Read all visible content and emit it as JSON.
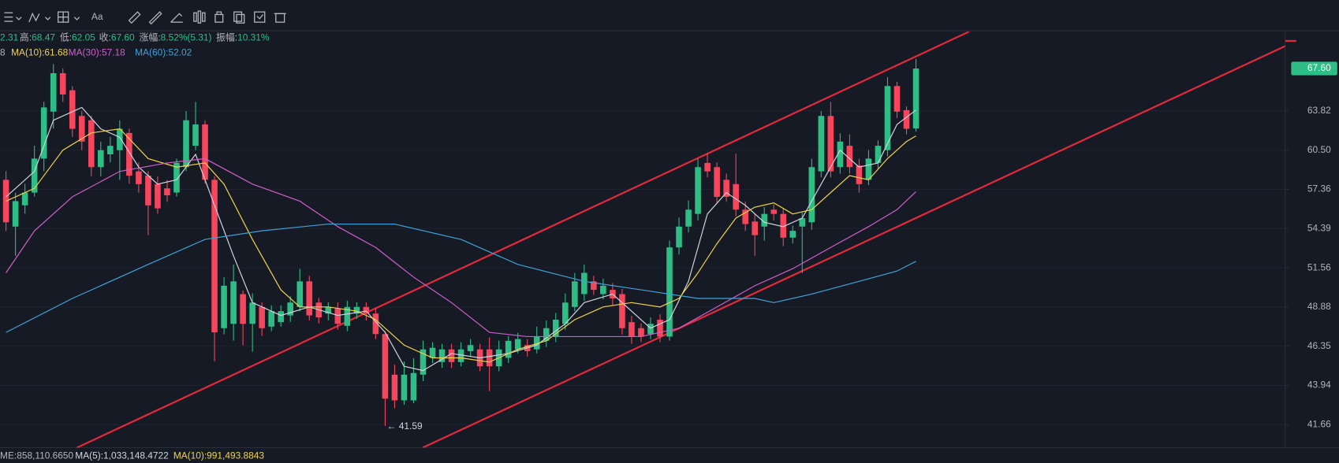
{
  "toolbar": {
    "text": "Aa"
  },
  "chart_data": {
    "type": "candlestick",
    "info": [
      {
        "value": "2.31"
      },
      {
        "label": "高:",
        "value": "68.47"
      },
      {
        "label": "低:",
        "value": "62.05"
      },
      {
        "label": "收:",
        "value": "67.60"
      },
      {
        "label": "涨幅:",
        "value": "8.52%(5.31)"
      },
      {
        "label": "振幅:",
        "value": "10.31%"
      }
    ],
    "ma_legend": [
      {
        "text": "8",
        "color": "#b2b5be"
      },
      {
        "text": "MA(10):61.68",
        "color": "#f0d34c"
      },
      {
        "text": "MA(30):57.18",
        "color": "#d15fc9"
      },
      {
        "text": "MA(60):52.02",
        "color": "#3fa3d8"
      }
    ],
    "volume_legend": [
      {
        "text": "ME:858,110.6650",
        "color": "#b2b5be"
      },
      {
        "text": "MA(5):1,033,148.4722",
        "color": "#d1d4dc"
      },
      {
        "text": "MA(10):991,493.8843",
        "color": "#f0d34c"
      }
    ],
    "up_color": "#2ebd85",
    "down_color": "#f6465d",
    "open": [
      58.11,
      54.53,
      56.13,
      57.11,
      59.81,
      63.75,
      67.17,
      65.63,
      63.38,
      63.01,
      59.12,
      60.16,
      60.5,
      61.93,
      58.78,
      58.44,
      57.77,
      57.44,
      57.11,
      59.12,
      60.86,
      62.65,
      58.11,
      47.5,
      47.78,
      49.75,
      47.78,
      48.89,
      47.6,
      47.89,
      48.33,
      48.89,
      50.62,
      49.18,
      48.45,
      48.78,
      47.65,
      48.45,
      48.89,
      48.45,
      47.12,
      44.59,
      43.06,
      43.06,
      44.59,
      45.62,
      45.36,
      46.15,
      45.36,
      46.04,
      46.15,
      46.15,
      45.1,
      45.62,
      46.15,
      46.42,
      46.15,
      46.69,
      46.96,
      47.78,
      48.89,
      49.75,
      50.62,
      49.75,
      50.04,
      49.75,
      47.89,
      47.5,
      47.12,
      48.05,
      46.96,
      53.01,
      54.53,
      55.48,
      59.46,
      59.12,
      58.11,
      57.77,
      55.8,
      54.91,
      54.53,
      55.8,
      55.48,
      53.72,
      54.53,
      54.85,
      58.78,
      63.38,
      59.12,
      60.86,
      59.25,
      58.11,
      59.46,
      60.5,
      66.01,
      63.88,
      62.31
    ],
    "high": [
      58.8,
      57.1,
      57.8,
      60.86,
      64.6,
      68.0,
      67.6,
      66.0,
      63.8,
      63.4,
      61.2,
      61.6,
      63.0,
      62.3,
      59.5,
      58.8,
      58.4,
      58.1,
      59.8,
      63.8,
      64.6,
      63.0,
      58.4,
      50.9,
      51.8,
      50.0,
      49.8,
      49.2,
      49.0,
      49.0,
      49.6,
      51.5,
      51.0,
      49.5,
      49.2,
      49.2,
      49.3,
      49.2,
      49.2,
      48.8,
      47.3,
      45.2,
      45.4,
      45.6,
      46.7,
      46.6,
      46.5,
      46.5,
      46.6,
      46.8,
      46.5,
      46.9,
      46.7,
      47.0,
      47.2,
      46.8,
      47.6,
      48.0,
      48.5,
      49.8,
      51.2,
      51.8,
      51.0,
      50.8,
      50.5,
      50.1,
      48.3,
      47.8,
      48.2,
      48.4,
      53.5,
      55.2,
      56.5,
      59.8,
      60.2,
      59.5,
      58.6,
      60.2,
      56.4,
      55.5,
      56.0,
      56.2,
      55.9,
      54.6,
      55.6,
      59.8,
      63.8,
      64.6,
      61.9,
      61.8,
      59.8,
      60.5,
      61.3,
      66.8,
      66.4,
      64.2,
      68.47
    ],
    "low": [
      54.2,
      52.4,
      55.5,
      56.8,
      58.8,
      62.3,
      64.6,
      61.6,
      60.5,
      58.4,
      58.4,
      59.5,
      58.1,
      57.8,
      57.1,
      53.9,
      55.5,
      56.4,
      56.8,
      58.8,
      60.5,
      57.8,
      45.4,
      47.1,
      46.7,
      46.4,
      46.0,
      47.0,
      47.3,
      47.6,
      47.9,
      48.6,
      48.0,
      47.8,
      48.0,
      47.4,
      47.3,
      48.1,
      48.0,
      46.8,
      41.59,
      42.6,
      42.8,
      42.9,
      44.2,
      45.3,
      45.0,
      45.0,
      45.1,
      45.7,
      44.8,
      43.6,
      44.8,
      45.3,
      45.9,
      45.7,
      45.9,
      46.3,
      46.6,
      47.4,
      48.6,
      49.3,
      49.7,
      49.4,
      49.0,
      47.1,
      46.5,
      46.6,
      46.8,
      46.6,
      46.7,
      52.5,
      54.1,
      55.0,
      58.3,
      56.3,
      56.4,
      55.3,
      54.2,
      52.4,
      53.5,
      55.0,
      53.1,
      53.3,
      51.2,
      54.3,
      58.3,
      58.3,
      58.6,
      58.6,
      57.1,
      57.7,
      59.0,
      60.0,
      63.2,
      61.8,
      62.05
    ],
    "close": [
      54.85,
      56.45,
      57.11,
      59.81,
      64.12,
      67.17,
      65.26,
      62.28,
      61.21,
      59.12,
      60.5,
      60.86,
      62.28,
      58.44,
      57.77,
      56.13,
      55.9,
      56.9,
      59.46,
      63.01,
      62.65,
      58.11,
      47.23,
      50.32,
      50.62,
      47.78,
      49.18,
      47.5,
      48.61,
      48.61,
      49.18,
      50.62,
      48.33,
      48.2,
      48.89,
      47.78,
      48.89,
      48.89,
      48.45,
      47.12,
      43.16,
      43.06,
      44.59,
      44.69,
      46.15,
      46.25,
      46.15,
      45.36,
      46.15,
      46.42,
      45.1,
      45.1,
      46.15,
      46.69,
      46.8,
      46.04,
      46.96,
      47.5,
      48.05,
      49.18,
      50.62,
      51.21,
      50.04,
      50.32,
      49.46,
      47.5,
      46.96,
      46.96,
      47.78,
      46.96,
      53.01,
      54.53,
      55.8,
      59.12,
      58.78,
      56.78,
      56.78,
      55.8,
      54.72,
      53.9,
      55.48,
      55.48,
      53.72,
      54.22,
      55.16,
      59.12,
      63.38,
      58.78,
      61.21,
      59.12,
      57.77,
      59.81,
      60.86,
      66.01,
      63.75,
      62.28,
      67.6
    ],
    "series": [
      {
        "color": "#d1d4dc",
        "x": [
          0,
          3,
          5,
          8,
          10,
          12,
          14,
          16,
          18,
          20,
          22,
          24,
          26,
          29,
          32,
          35,
          38,
          40,
          42,
          44,
          47,
          50,
          53,
          56,
          59,
          61,
          64,
          66,
          68,
          70,
          72,
          74,
          76,
          78,
          80,
          82,
          84,
          86,
          88,
          90,
          92,
          94,
          96
        ],
        "values": [
          56.78,
          58.78,
          63.01,
          64.12,
          62.28,
          61.57,
          59.12,
          57.77,
          58.11,
          60.16,
          56.13,
          52.4,
          49.18,
          48.33,
          48.89,
          48.33,
          48.61,
          47.23,
          45.1,
          44.84,
          45.89,
          45.62,
          45.89,
          46.42,
          47.78,
          49.18,
          49.75,
          48.61,
          47.5,
          48.05,
          50.62,
          55.48,
          57.11,
          56.13,
          54.85,
          54.53,
          55.16,
          57.77,
          60.5,
          59.12,
          59.46,
          62.65,
          63.89
        ]
      },
      {
        "color": "#f0d34c",
        "x": [
          0,
          3,
          6,
          9,
          12,
          15,
          18,
          21,
          23,
          26,
          29,
          31,
          34,
          37,
          39,
          42,
          45,
          48,
          51,
          54,
          57,
          60,
          63,
          66,
          69,
          71,
          73,
          75,
          77,
          79,
          81,
          83,
          85,
          87,
          89,
          91,
          93,
          95,
          96
        ],
        "values": [
          56.45,
          57.44,
          60.5,
          61.93,
          62.28,
          59.81,
          59.12,
          59.46,
          57.77,
          53.59,
          50.04,
          48.89,
          48.89,
          48.61,
          48.05,
          46.42,
          45.62,
          45.62,
          45.36,
          46.15,
          46.69,
          48.05,
          48.89,
          49.18,
          48.89,
          49.46,
          51.21,
          53.28,
          55.16,
          55.99,
          56.32,
          55.48,
          55.8,
          57.11,
          58.44,
          58.11,
          59.81,
          61.21,
          61.68
        ]
      },
      {
        "color": "#d15fc9",
        "x": [
          0,
          3,
          7,
          12,
          17,
          21,
          26,
          31,
          35,
          39,
          43,
          47,
          51,
          55,
          59,
          63,
          67,
          71,
          75,
          79,
          83,
          87,
          91,
          94,
          96
        ],
        "values": [
          51.21,
          54.22,
          56.78,
          58.78,
          59.46,
          59.81,
          57.77,
          56.45,
          54.53,
          53.01,
          50.91,
          49.18,
          47.23,
          46.96,
          46.96,
          46.96,
          46.96,
          47.5,
          48.89,
          50.32,
          51.5,
          53.01,
          54.53,
          55.8,
          57.18
        ]
      },
      {
        "color": "#3fa3d8",
        "x": [
          0,
          7,
          15,
          21,
          27,
          34,
          41,
          48,
          54,
          61,
          67,
          73,
          79,
          81,
          85,
          90,
          94,
          96
        ],
        "values": [
          47.23,
          49.46,
          51.8,
          53.59,
          54.22,
          54.72,
          54.72,
          53.59,
          51.8,
          50.62,
          50.04,
          49.46,
          49.46,
          49.18,
          49.75,
          50.62,
          51.33,
          52.02
        ]
      }
    ],
    "xlim": [
      -0.63,
      134.95
    ],
    "ylim": [
      40.38,
      71.0
    ],
    "log_y": true,
    "yticks": [
      63.82,
      {
        "value": 60.5,
        "label": "60.50"
      },
      57.36,
      54.39,
      51.56,
      48.88,
      46.35,
      43.94,
      41.66
    ],
    "grid": true,
    "last_price": {
      "value": 67.6,
      "label": "67.60",
      "color": "#2ebd85"
    },
    "annotation": {
      "text": "← 41.59"
    }
  }
}
